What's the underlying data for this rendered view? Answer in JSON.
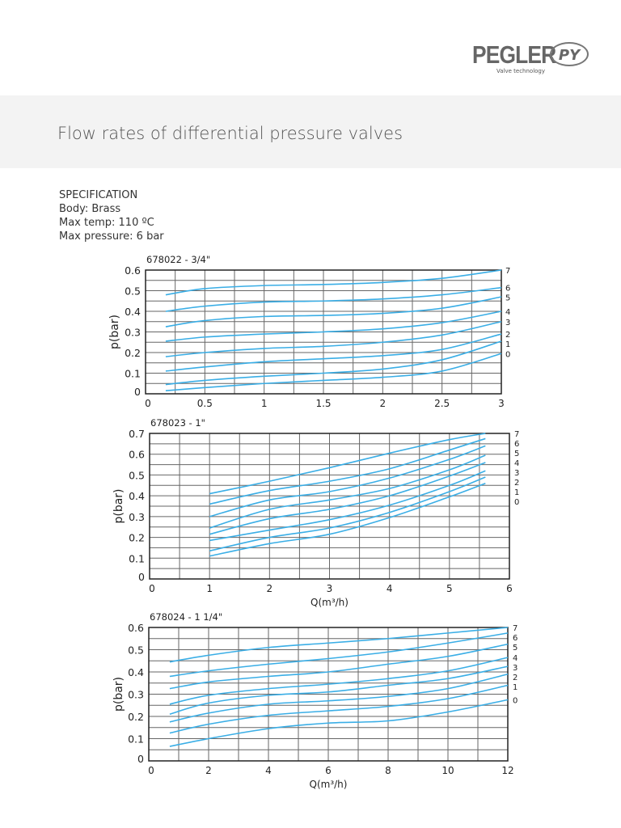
{
  "logo": {
    "brand": "PEGLER",
    "mark": "PY",
    "tagline": "Valve technology"
  },
  "page_title": "Flow rates of differential pressure valves",
  "specification": {
    "heading": "SPECIFICATION",
    "lines": [
      "Body: Brass",
      "Max temp: 110 ºC",
      "Max pressure: 6 bar"
    ]
  },
  "colors": {
    "series": "#3aaee6",
    "grid": "#666666",
    "band": "#f3f3f3"
  },
  "chart_data": [
    {
      "type": "line",
      "title": "678022 - 3/4\"",
      "xlabel": "",
      "ylabel": "p(bar)",
      "xlim": [
        0,
        3
      ],
      "ylim": [
        0,
        0.6
      ],
      "xticks": [
        "0",
        "0.5",
        "1",
        "1.5",
        "2",
        "2.5",
        "3"
      ],
      "yticks": [
        "0",
        "0.1",
        "0.2",
        "0.3",
        "0.4",
        "0.5",
        "0.6"
      ],
      "grid": true,
      "x": [
        0.17,
        0.5,
        1,
        1.5,
        2,
        2.5,
        3
      ],
      "series": [
        {
          "name": "7",
          "values": [
            0.48,
            0.51,
            0.525,
            0.53,
            0.54,
            0.56,
            0.6
          ]
        },
        {
          "name": "6",
          "values": [
            0.4,
            0.425,
            0.445,
            0.45,
            0.46,
            0.48,
            0.515
          ]
        },
        {
          "name": "5",
          "values": [
            0.325,
            0.355,
            0.375,
            0.38,
            0.39,
            0.415,
            0.47
          ]
        },
        {
          "name": "4",
          "values": [
            0.255,
            0.275,
            0.29,
            0.3,
            0.315,
            0.345,
            0.4
          ]
        },
        {
          "name": "3",
          "values": [
            0.18,
            0.2,
            0.22,
            0.23,
            0.25,
            0.285,
            0.35
          ]
        },
        {
          "name": "2",
          "values": [
            0.11,
            0.13,
            0.155,
            0.17,
            0.185,
            0.215,
            0.29
          ]
        },
        {
          "name": "1",
          "values": [
            0.045,
            0.065,
            0.085,
            0.1,
            0.12,
            0.165,
            0.255
          ]
        },
        {
          "name": "0",
          "values": [
            0.015,
            0.03,
            0.05,
            0.065,
            0.08,
            0.11,
            0.195
          ]
        }
      ]
    },
    {
      "type": "line",
      "title": "678023 - 1\"",
      "xlabel": "Q(m³/h)",
      "ylabel": "p(bar)",
      "xlim": [
        0,
        6
      ],
      "ylim": [
        0,
        0.7
      ],
      "xticks": [
        "0",
        "1",
        "2",
        "3",
        "4",
        "5",
        "6"
      ],
      "yticks": [
        "0",
        "0.1",
        "0.2",
        "0.3",
        "0.4",
        "0.5",
        "0.6",
        "0.7"
      ],
      "grid": true,
      "x": [
        1,
        2,
        3,
        4,
        5,
        5.6
      ],
      "series": [
        {
          "name": "7",
          "values": [
            0.41,
            0.47,
            0.535,
            0.605,
            0.67,
            0.7
          ]
        },
        {
          "name": "6",
          "values": [
            0.36,
            0.425,
            0.47,
            0.53,
            0.62,
            0.675
          ]
        },
        {
          "name": "5",
          "values": [
            0.3,
            0.38,
            0.42,
            0.485,
            0.575,
            0.64
          ]
        },
        {
          "name": "4",
          "values": [
            0.245,
            0.335,
            0.38,
            0.435,
            0.525,
            0.595
          ]
        },
        {
          "name": "3",
          "values": [
            0.215,
            0.29,
            0.335,
            0.4,
            0.495,
            0.56
          ]
        },
        {
          "name": "2",
          "values": [
            0.185,
            0.235,
            0.285,
            0.355,
            0.45,
            0.52
          ]
        },
        {
          "name": "1",
          "values": [
            0.135,
            0.2,
            0.245,
            0.32,
            0.42,
            0.49
          ]
        },
        {
          "name": "0",
          "values": [
            0.11,
            0.17,
            0.215,
            0.295,
            0.395,
            0.46
          ]
        }
      ]
    },
    {
      "type": "line",
      "title": "678024 - 1 1/4\"",
      "xlabel": "Q(m³/h)",
      "ylabel": "p(bar)",
      "xlim": [
        0,
        12
      ],
      "ylim": [
        0,
        0.6
      ],
      "xticks": [
        "0",
        "2",
        "4",
        "6",
        "8",
        "10",
        "12"
      ],
      "yticks": [
        "0",
        "0.1",
        "0.2",
        "0.3",
        "0.4",
        "0.5",
        "0.6"
      ],
      "grid": true,
      "x": [
        0.7,
        2,
        4,
        6,
        8,
        10,
        12
      ],
      "series": [
        {
          "name": "7",
          "values": [
            0.445,
            0.475,
            0.51,
            0.53,
            0.55,
            0.575,
            0.6
          ]
        },
        {
          "name": "6",
          "values": [
            0.38,
            0.405,
            0.435,
            0.46,
            0.49,
            0.53,
            0.575
          ]
        },
        {
          "name": "5",
          "values": [
            0.325,
            0.355,
            0.38,
            0.4,
            0.435,
            0.47,
            0.525
          ]
        },
        {
          "name": "4",
          "values": [
            0.255,
            0.295,
            0.325,
            0.345,
            0.37,
            0.405,
            0.465
          ]
        },
        {
          "name": "3",
          "values": [
            0.21,
            0.26,
            0.295,
            0.31,
            0.34,
            0.37,
            0.425
          ]
        },
        {
          "name": "2",
          "values": [
            0.175,
            0.215,
            0.255,
            0.27,
            0.29,
            0.325,
            0.39
          ]
        },
        {
          "name": "1",
          "values": [
            0.125,
            0.165,
            0.205,
            0.225,
            0.245,
            0.28,
            0.34
          ]
        },
        {
          "name": "0",
          "values": [
            0.065,
            0.1,
            0.145,
            0.17,
            0.18,
            0.22,
            0.275
          ]
        }
      ]
    }
  ]
}
